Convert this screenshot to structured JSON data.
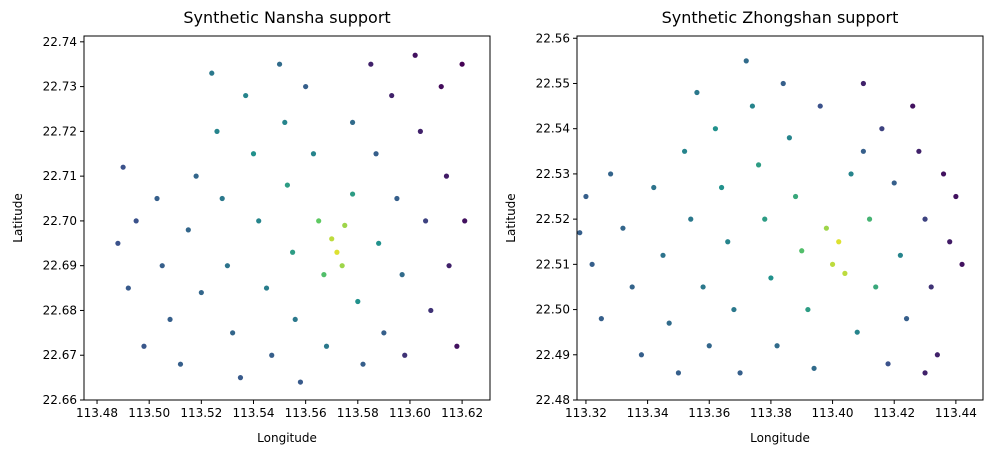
{
  "chart_data": [
    {
      "type": "scatter",
      "title": "Synthetic Nansha support",
      "xlabel": "Longitude",
      "ylabel": "Latitude",
      "xlim": [
        113.475,
        113.6307
      ],
      "ylim": [
        22.66,
        22.7413
      ],
      "xticks": [
        113.48,
        {
          "value": 113.5,
          "label": "113.50"
        },
        113.52,
        113.54,
        113.56,
        113.58,
        {
          "value": 113.6,
          "label": "113.60"
        },
        113.62
      ],
      "yticks": [
        22.66,
        22.67,
        22.68,
        22.69,
        {
          "value": 22.7,
          "label": "22.70"
        },
        22.71,
        22.72,
        22.73,
        22.74
      ],
      "colormap": [
        "#440154",
        "#3b528b",
        "#21918c",
        "#5ec962",
        "#fde725"
      ],
      "x": [
        113.49,
        113.495,
        113.492,
        113.498,
        113.503,
        113.505,
        113.508,
        113.512,
        113.515,
        113.518,
        113.52,
        113.524,
        113.526,
        113.528,
        113.53,
        113.532,
        113.535,
        113.537,
        113.54,
        113.542,
        113.545,
        113.547,
        113.55,
        113.552,
        113.553,
        113.555,
        113.556,
        113.558,
        113.56,
        113.563,
        113.565,
        113.567,
        113.568,
        113.57,
        113.572,
        113.575,
        113.574,
        113.578,
        113.578,
        113.58,
        113.582,
        113.585,
        113.587,
        113.588,
        113.59,
        113.593,
        113.595,
        113.597,
        113.598,
        113.602,
        113.604,
        113.606,
        113.608,
        113.612,
        113.614,
        113.615,
        113.618,
        113.62,
        113.621,
        113.488
      ],
      "values": [
        22.712,
        22.7,
        22.685,
        22.672,
        22.705,
        22.69,
        22.678,
        22.668,
        22.698,
        22.71,
        22.684,
        22.733,
        22.72,
        22.705,
        22.69,
        22.675,
        22.665,
        22.728,
        22.715,
        22.7,
        22.685,
        22.67,
        22.735,
        22.722,
        22.708,
        22.693,
        22.678,
        22.664,
        22.73,
        22.715,
        22.7,
        22.688,
        22.672,
        22.696,
        22.693,
        22.699,
        22.69,
        22.722,
        22.706,
        22.682,
        22.668,
        22.735,
        22.715,
        22.695,
        22.675,
        22.728,
        22.705,
        22.688,
        22.67,
        22.737,
        22.72,
        22.7,
        22.68,
        22.73,
        22.71,
        22.69,
        22.672,
        22.735,
        22.7,
        22.695
      ],
      "color_values": [
        0.25,
        0.25,
        0.28,
        0.27,
        0.3,
        0.3,
        0.3,
        0.3,
        0.33,
        0.33,
        0.33,
        0.4,
        0.45,
        0.4,
        0.38,
        0.33,
        0.28,
        0.45,
        0.5,
        0.45,
        0.42,
        0.3,
        0.35,
        0.45,
        0.55,
        0.55,
        0.4,
        0.28,
        0.3,
        0.45,
        0.75,
        0.7,
        0.4,
        0.9,
        0.95,
        0.85,
        0.85,
        0.35,
        0.55,
        0.5,
        0.3,
        0.1,
        0.3,
        0.5,
        0.3,
        0.1,
        0.3,
        0.35,
        0.15,
        0.05,
        0.1,
        0.2,
        0.15,
        0.03,
        0.08,
        0.1,
        0.05,
        0,
        0.05,
        0.25
      ]
    },
    {
      "type": "scatter",
      "title": "Synthetic Zhongshan support",
      "xlabel": "Longitude",
      "ylabel": "Latitude",
      "xlim": [
        113.3171,
        113.4488
      ],
      "ylim": [
        22.48,
        22.5605
      ],
      "xticks": [
        113.32,
        113.34,
        113.36,
        113.38,
        {
          "value": 113.4,
          "label": "113.40"
        },
        113.42,
        113.44
      ],
      "yticks": [
        22.48,
        22.49,
        {
          "value": 22.5,
          "label": "22.50"
        },
        22.51,
        22.52,
        22.53,
        22.54,
        22.55,
        22.56
      ],
      "colormap": [
        "#440154",
        "#3b528b",
        "#21918c",
        "#5ec962",
        "#fde725"
      ],
      "x": [
        113.32,
        113.322,
        113.325,
        113.328,
        113.332,
        113.335,
        113.338,
        113.342,
        113.345,
        113.347,
        113.35,
        113.352,
        113.354,
        113.356,
        113.358,
        113.36,
        113.362,
        113.364,
        113.366,
        113.368,
        113.37,
        113.372,
        113.374,
        113.376,
        113.378,
        113.38,
        113.382,
        113.384,
        113.386,
        113.388,
        113.39,
        113.392,
        113.394,
        113.396,
        113.398,
        113.4,
        113.402,
        113.404,
        113.406,
        113.408,
        113.41,
        113.412,
        113.414,
        113.416,
        113.418,
        113.42,
        113.422,
        113.424,
        113.426,
        113.428,
        113.43,
        113.432,
        113.434,
        113.436,
        113.438,
        113.44,
        113.442,
        113.43,
        113.318,
        113.41
      ],
      "values": [
        22.525,
        22.51,
        22.498,
        22.53,
        22.518,
        22.505,
        22.49,
        22.527,
        22.512,
        22.497,
        22.486,
        22.535,
        22.52,
        22.548,
        22.505,
        22.492,
        22.54,
        22.527,
        22.515,
        22.5,
        22.486,
        22.555,
        22.545,
        22.532,
        22.52,
        22.507,
        22.492,
        22.55,
        22.538,
        22.525,
        22.513,
        22.5,
        22.487,
        22.545,
        22.518,
        22.51,
        22.515,
        22.508,
        22.53,
        22.495,
        22.55,
        22.52,
        22.505,
        22.54,
        22.488,
        22.528,
        22.512,
        22.498,
        22.545,
        22.535,
        22.52,
        22.505,
        22.49,
        22.53,
        22.515,
        22.525,
        22.51,
        22.486,
        22.517,
        22.535
      ],
      "color_values": [
        0.3,
        0.3,
        0.3,
        0.32,
        0.33,
        0.32,
        0.3,
        0.38,
        0.38,
        0.35,
        0.3,
        0.45,
        0.4,
        0.4,
        0.4,
        0.33,
        0.5,
        0.5,
        0.45,
        0.4,
        0.3,
        0.35,
        0.45,
        0.55,
        0.55,
        0.5,
        0.35,
        0.3,
        0.45,
        0.6,
        0.7,
        0.55,
        0.35,
        0.25,
        0.85,
        0.9,
        0.95,
        0.9,
        0.45,
        0.45,
        0.1,
        0.65,
        0.6,
        0.2,
        0.25,
        0.3,
        0.45,
        0.3,
        0.05,
        0.1,
        0.2,
        0.15,
        0.1,
        0.05,
        0.08,
        0.05,
        0.05,
        0.1,
        0.3,
        0.3
      ]
    }
  ]
}
